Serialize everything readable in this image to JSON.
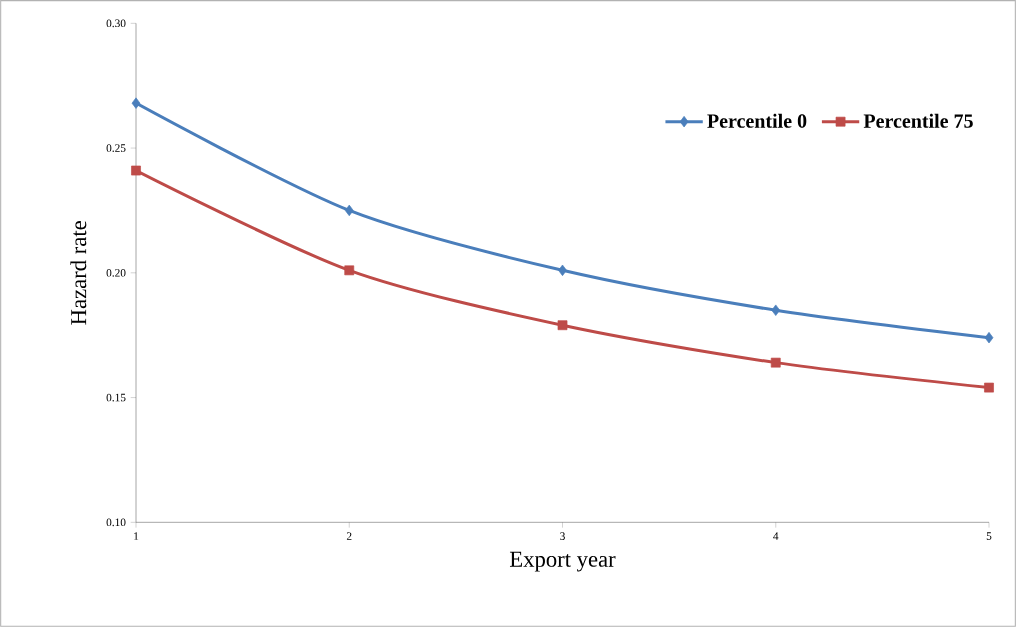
{
  "chart_data": {
    "type": "line",
    "xlabel": "Export year",
    "ylabel": "Hazard rate",
    "categories": [
      "1",
      "2",
      "3",
      "4",
      "5"
    ],
    "series": [
      {
        "name": "Percentile 0",
        "color": "#4a7ebb",
        "marker": "diamond",
        "values": [
          0.268,
          0.225,
          0.201,
          0.185,
          0.174
        ]
      },
      {
        "name": "Percentile 75",
        "color": "#be4b48",
        "marker": "square",
        "values": [
          0.241,
          0.201,
          0.179,
          0.164,
          0.154
        ]
      }
    ],
    "ylim": [
      0.1,
      0.3
    ],
    "yticks": [
      {
        "value": 0.1,
        "label": "0.10"
      },
      {
        "value": 0.15,
        "label": "0.15"
      },
      {
        "value": 0.2,
        "label": "0.20"
      },
      {
        "value": 0.25,
        "label": "0.25"
      },
      {
        "value": 0.3,
        "label": "0.30"
      }
    ],
    "legend": "top right",
    "grid": false,
    "line_style": "solid"
  }
}
